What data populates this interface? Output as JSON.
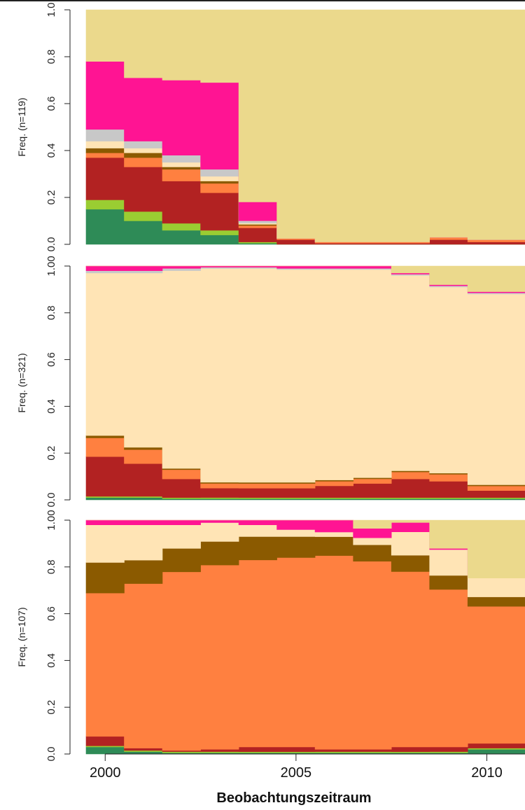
{
  "chart_data": {
    "type": "area",
    "xlabel": "Beobachtungszeitraum",
    "xticks": [
      "2000",
      "2005",
      "2010"
    ],
    "xlim": [
      1999.5,
      2011
    ],
    "x": [
      1999.5,
      2000.5,
      2001.5,
      2002.5,
      2003.5,
      2004.5,
      2005.5,
      2006.5,
      2007.5,
      2008.5,
      2009.5,
      2011
    ],
    "panels": [
      {
        "ylabel": "Freq. (n=119)",
        "ylim": [
          0,
          1
        ],
        "yticks": [
          "0.0",
          "0.2",
          "0.4",
          "0.6",
          "0.8",
          "1.0"
        ],
        "series": [
          {
            "color": "#2e8b57",
            "values": [
              0.15,
              0.1,
              0.06,
              0.04,
              0.005,
              0,
              0,
              0,
              0,
              0,
              0,
              0
            ]
          },
          {
            "color": "#9acd32",
            "values": [
              0.04,
              0.04,
              0.03,
              0.02,
              0.005,
              0,
              0,
              0,
              0,
              0,
              0,
              0
            ]
          },
          {
            "color": "#b22222",
            "values": [
              0.18,
              0.19,
              0.18,
              0.16,
              0.06,
              0.02,
              0.005,
              0.005,
              0.005,
              0.02,
              0.01,
              0.01
            ]
          },
          {
            "color": "#ff8040",
            "values": [
              0.02,
              0.04,
              0.05,
              0.04,
              0.01,
              0.005,
              0.005,
              0.005,
              0.005,
              0.01,
              0.01,
              0.01
            ]
          },
          {
            "color": "#8b5a00",
            "values": [
              0.02,
              0.02,
              0.01,
              0.01,
              0.005,
              0,
              0,
              0,
              0,
              0,
              0,
              0
            ]
          },
          {
            "color": "#ffe4b5",
            "values": [
              0.03,
              0.02,
              0.02,
              0.02,
              0.005,
              0,
              0,
              0,
              0,
              0,
              0,
              0
            ]
          },
          {
            "color": "#c8c8c8",
            "values": [
              0.05,
              0.03,
              0.03,
              0.03,
              0.01,
              0,
              0,
              0,
              0,
              0,
              0,
              0
            ]
          },
          {
            "color": "#ff1493",
            "values": [
              0.29,
              0.27,
              0.32,
              0.37,
              0.08,
              0,
              0,
              0,
              0,
              0,
              0,
              0
            ]
          },
          {
            "color": "#ebd98c",
            "values": [
              0.22,
              0.29,
              0.3,
              0.31,
              0.815,
              0.975,
              0.99,
              0.99,
              0.99,
              0.97,
              0.98,
              0.98
            ]
          }
        ]
      },
      {
        "ylabel": "Freq. (n=321)",
        "ylim": [
          0,
          1
        ],
        "yticks": [
          "0.0",
          "0.2",
          "0.4",
          "0.6",
          "0.8",
          "1.00"
        ],
        "series": [
          {
            "color": "#2e8b57",
            "values": [
              0.01,
              0.01,
              0.005,
              0.005,
              0.005,
              0.005,
              0.005,
              0.005,
              0.005,
              0.005,
              0.005,
              0.005
            ]
          },
          {
            "color": "#9acd32",
            "values": [
              0.005,
              0.005,
              0.005,
              0.005,
              0.005,
              0.005,
              0.005,
              0.005,
              0.005,
              0.005,
              0.005,
              0.005
            ]
          },
          {
            "color": "#b22222",
            "values": [
              0.17,
              0.14,
              0.08,
              0.04,
              0.04,
              0.04,
              0.05,
              0.06,
              0.08,
              0.07,
              0.03,
              0.02
            ]
          },
          {
            "color": "#ff8040",
            "values": [
              0.08,
              0.06,
              0.04,
              0.02,
              0.02,
              0.02,
              0.02,
              0.02,
              0.03,
              0.03,
              0.02,
              0.02
            ]
          },
          {
            "color": "#8b5a00",
            "values": [
              0.01,
              0.01,
              0.005,
              0.005,
              0.005,
              0.005,
              0.005,
              0.005,
              0.005,
              0.005,
              0.005,
              0.005
            ]
          },
          {
            "color": "#ffe4b5",
            "values": [
              0.695,
              0.745,
              0.85,
              0.91,
              0.915,
              0.91,
              0.9,
              0.89,
              0.84,
              0.8,
              0.82,
              0.81
            ]
          },
          {
            "color": "#c8c8c8",
            "values": [
              0.01,
              0.01,
              0.01,
              0.005,
              0.005,
              0.005,
              0.005,
              0.005,
              0.005,
              0.005,
              0.005,
              0.005
            ]
          },
          {
            "color": "#ff1493",
            "values": [
              0.02,
              0.02,
              0.01,
              0.005,
              0.005,
              0.01,
              0.01,
              0.01,
              0.005,
              0.005,
              0.005,
              0.005
            ]
          },
          {
            "color": "#ebd98c",
            "values": [
              0,
              0,
              0,
              0,
              0,
              0,
              0,
              0,
              0.03,
              0.08,
              0.11,
              0.13
            ]
          }
        ]
      },
      {
        "ylabel": "Freq. (n=107)",
        "ylim": [
          0,
          1
        ],
        "yticks": [
          "0.0",
          "0.2",
          "0.4",
          "0.6",
          "0.8",
          "1.00"
        ],
        "series": [
          {
            "color": "#2e8b57",
            "values": [
              0.03,
              0.01,
              0.005,
              0.005,
              0.005,
              0.005,
              0.005,
              0.005,
              0.005,
              0.005,
              0.02,
              0.03
            ]
          },
          {
            "color": "#9acd32",
            "values": [
              0.005,
              0.005,
              0.005,
              0.005,
              0.005,
              0.005,
              0.005,
              0.005,
              0.005,
              0.005,
              0.005,
              0.005
            ]
          },
          {
            "color": "#b22222",
            "values": [
              0.04,
              0.01,
              0.005,
              0.01,
              0.02,
              0.02,
              0.01,
              0.01,
              0.02,
              0.02,
              0.02,
              0.02
            ]
          },
          {
            "color": "#ff8040",
            "values": [
              0.61,
              0.7,
              0.76,
              0.78,
              0.8,
              0.81,
              0.82,
              0.8,
              0.75,
              0.67,
              0.58,
              0.5
            ]
          },
          {
            "color": "#8b5a00",
            "values": [
              0.13,
              0.1,
              0.1,
              0.1,
              0.1,
              0.09,
              0.08,
              0.07,
              0.07,
              0.06,
              0.04,
              0.02
            ]
          },
          {
            "color": "#ffe4b5",
            "values": [
              0.16,
              0.15,
              0.1,
              0.08,
              0.05,
              0.03,
              0.02,
              0.03,
              0.1,
              0.11,
              0.08,
              0.19
            ]
          },
          {
            "color": "#c8c8c8",
            "values": [
              0,
              0,
              0,
              0,
              0,
              0,
              0,
              0,
              0,
              0,
              0,
              0
            ]
          },
          {
            "color": "#ff1493",
            "values": [
              0.02,
              0.02,
              0.02,
              0.01,
              0.02,
              0.04,
              0.05,
              0.04,
              0.04,
              0.005,
              0,
              0
            ]
          },
          {
            "color": "#ebd98c",
            "values": [
              0,
              0,
              0,
              0,
              0,
              0,
              0,
              0.035,
              0.01,
              0.12,
              0.245,
              0.235
            ]
          }
        ]
      }
    ]
  }
}
